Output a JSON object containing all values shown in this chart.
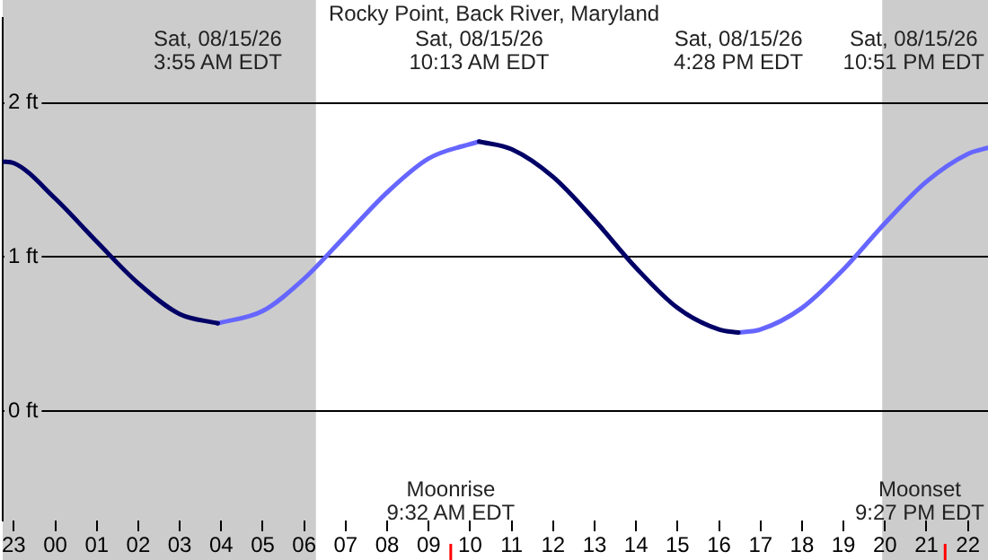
{
  "chart_data": {
    "type": "line",
    "title": "Rocky Point, Back River, Maryland",
    "xlim": [
      "--08-14T22:44",
      "--08-15T22:29"
    ],
    "xticks": [
      {
        "value": "--08-14T23:00",
        "label": "23"
      },
      {
        "value": "--08-15T00:00",
        "label": "00"
      },
      {
        "value": "--08-15T01:00",
        "label": "01"
      },
      {
        "value": "--08-15T02:00",
        "label": "02"
      },
      {
        "value": "--08-15T03:00",
        "label": "03"
      },
      {
        "value": "--08-15T04:00",
        "label": "04"
      },
      {
        "value": "--08-15T05:00",
        "label": "05"
      },
      {
        "value": "--08-15T06:00",
        "label": "06"
      },
      {
        "value": "--08-15T07:00",
        "label": "07"
      },
      {
        "value": "--08-15T08:00",
        "label": "08"
      },
      {
        "value": "--08-15T09:00",
        "label": "09"
      },
      {
        "value": "--08-15T10:00",
        "label": "10"
      },
      {
        "value": "--08-15T11:00",
        "label": "11"
      },
      {
        "value": "--08-15T12:00",
        "label": "12"
      },
      {
        "value": "--08-15T13:00",
        "label": "13"
      },
      {
        "value": "--08-15T14:00",
        "label": "14"
      },
      {
        "value": "--08-15T15:00",
        "label": "15"
      },
      {
        "value": "--08-15T16:00",
        "label": "16"
      },
      {
        "value": "--08-15T17:00",
        "label": "17"
      },
      {
        "value": "--08-15T18:00",
        "label": "18"
      },
      {
        "value": "--08-15T19:00",
        "label": "19"
      },
      {
        "value": "--08-15T20:00",
        "label": "20"
      },
      {
        "value": "--08-15T21:00",
        "label": "21"
      },
      {
        "value": "--08-15T22:00",
        "label": "22"
      }
    ],
    "ylim": [
      -0.71,
      2.55
    ],
    "yticks": [
      {
        "value": 0,
        "label": "0 ft"
      },
      {
        "value": 1,
        "label": "1 ft"
      },
      {
        "value": 2,
        "label": "2 ft"
      }
    ],
    "grid": "y",
    "marker": "none",
    "line_style": "solid",
    "series": [
      {
        "color": "#000066",
        "x": [
          "--08-14T22:44",
          "--08-14T23:00",
          "--08-15T00:00",
          "--08-15T01:00",
          "--08-15T02:00",
          "--08-15T03:00",
          "--08-15T03:55",
          "--08-15T07:00",
          "--08-15T10:13",
          "--08-15T11:00",
          "--08-15T12:00",
          "--08-15T13:00",
          "--08-15T14:00",
          "--08-15T15:00",
          "--08-15T16:00",
          "--08-15T16:28"
        ],
        "values": [
          1.62,
          1.61,
          1.38,
          1.1,
          0.83,
          0.63,
          0.57,
          null,
          1.75,
          1.7,
          1.52,
          1.24,
          0.93,
          0.67,
          0.53,
          0.51
        ]
      },
      {
        "color": "#6666ff",
        "x": [
          "--08-15T03:55",
          "--08-15T05:00",
          "--08-15T06:00",
          "--08-15T07:00",
          "--08-15T08:00",
          "--08-15T09:00",
          "--08-15T10:13",
          "--08-15T13:00",
          "--08-15T16:28",
          "--08-15T17:00",
          "--08-15T18:00",
          "--08-15T19:00",
          "--08-15T20:00",
          "--08-15T21:00",
          "--08-15T22:00",
          "--08-15T22:29"
        ],
        "values": [
          0.57,
          0.65,
          0.86,
          1.14,
          1.42,
          1.64,
          1.75,
          null,
          0.51,
          0.53,
          0.67,
          0.92,
          1.22,
          1.49,
          1.67,
          1.71
        ]
      }
    ],
    "bands": [
      {
        "axis": "x",
        "from": "--08-14T22:44",
        "to": "--08-15T06:17",
        "color": "#cccccc"
      },
      {
        "axis": "x",
        "from": "--08-15T19:56",
        "to": "--08-15T22:29",
        "color": "#cccccc"
      }
    ],
    "ref_lines": [
      {
        "axis": "x",
        "value": "--08-15T09:32",
        "label": "Moonrise\n9:32 AM EDT",
        "color": "#ff0000"
      },
      {
        "axis": "x",
        "value": "--08-15T21:27",
        "label": "Moonset\n9:27 PM EDT",
        "color": "#ff0000"
      }
    ],
    "annotations": [
      "Sat, 08/15/26\n3:55 AM EDT",
      "Sat, 08/15/26\n10:13 AM EDT",
      "Sat, 08/15/26\n4:28 PM EDT",
      "Sat, 08/15/26\n10:51 PM EDT"
    ]
  }
}
